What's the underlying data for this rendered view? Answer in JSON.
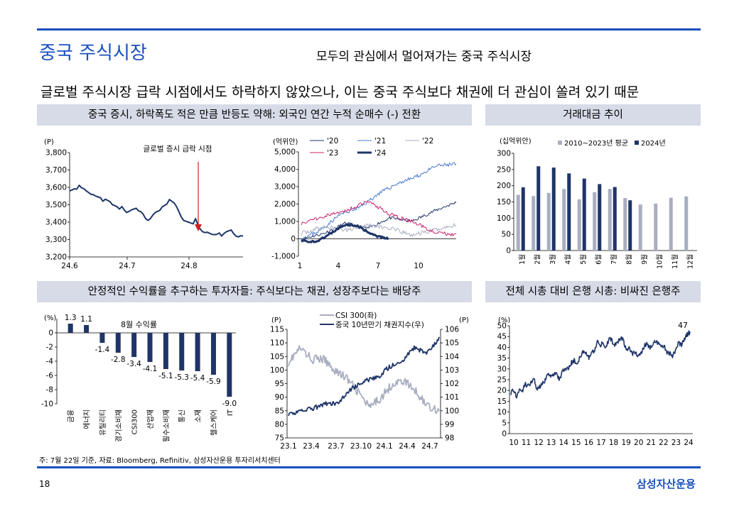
{
  "header": {
    "title": "중국 주식시장",
    "subtitle": "모두의 관심에서 멀어져가는 중국 주식시장",
    "headline": "글로벌 주식시장 급락 시점에서도 하락하지 않았으나, 이는 중국 주식보다 채권에 더 관심이 쏠려 있기 때문"
  },
  "bands": {
    "b1": "중국 증시, 하락폭도 적은 만큼 반등도 약해: 외국인 연간 누적 순매수 (-) 전환",
    "b2": "거래대금 추이",
    "b3": "안정적인 수익률을 추구하는 투자자들: 주식보다는 채권, 성장주보다는 배당주",
    "b4": "전체 시총 대비 은행 시총: 비싸진 은행주"
  },
  "footer": {
    "note": "주: 7월 22일 기준, 자료: Bloomberg, Refinitiv, 삼성자산운용 투자리서치센터",
    "page": "18",
    "brand": "삼성자산운용"
  },
  "colors": {
    "accent": "#1a4fbf",
    "navy": "#1f3569",
    "band": "#d6dbe7",
    "gray": "#a9aec0",
    "red": "#d42020"
  },
  "chart_data": [
    {
      "type": "line",
      "unit": "(P)",
      "annotation": "글로벌 증시 급락 시점",
      "x_ticks": [
        "24.6",
        "24.7",
        "24.8"
      ],
      "ylim": [
        3200,
        3800
      ],
      "y_ticks": [
        "3,200",
        "3,300",
        "3,400",
        "3,500",
        "3,600",
        "3,700",
        "3,800"
      ],
      "series": [
        {
          "values": [
            3580,
            3585,
            3592,
            3590,
            3612,
            3598,
            3592,
            3580,
            3570,
            3560,
            3558,
            3550,
            3545,
            3540,
            3520,
            3532,
            3525,
            3518,
            3500,
            3495,
            3488,
            3475,
            3490,
            3470,
            3455,
            3462,
            3470,
            3475,
            3480,
            3465,
            3460,
            3445,
            3420,
            3410,
            3420,
            3440,
            3455,
            3462,
            3468,
            3488,
            3496,
            3505,
            3530,
            3520,
            3510,
            3490,
            3460,
            3430,
            3410,
            3405,
            3400,
            3395,
            3390,
            3420,
            3385,
            3360,
            3345,
            3340,
            3342,
            3335,
            3330,
            3328,
            3330,
            3338,
            3320,
            3335,
            3345,
            3350,
            3355,
            3335,
            3320,
            3315,
            3322,
            3320
          ]
        }
      ]
    },
    {
      "type": "line",
      "unit": "(억위안)",
      "x_ticks": [
        "1",
        "4",
        "7",
        "10"
      ],
      "ylim": [
        -1000,
        5000
      ],
      "y_ticks": [
        "-1,000",
        "0",
        "1,000",
        "2,000",
        "3,000",
        "4,000",
        "5,000"
      ],
      "legend": [
        "'20",
        "'21",
        "'22",
        "'23",
        "'24"
      ]
    },
    {
      "type": "bar",
      "unit": "(십억위안)",
      "categories": [
        "1월",
        "2월",
        "3월",
        "4월",
        "5월",
        "6월",
        "7월",
        "8월",
        "9월",
        "10월",
        "11월",
        "12월"
      ],
      "ylim": [
        0,
        300
      ],
      "y_ticks": [
        "0",
        "50",
        "100",
        "150",
        "200",
        "250",
        "300"
      ],
      "series": [
        {
          "name": "2010~2023년 평균",
          "values": [
            172,
            168,
            178,
            190,
            158,
            180,
            190,
            162,
            142,
            145,
            163,
            167
          ]
        },
        {
          "name": "2024년",
          "values": [
            195,
            260,
            256,
            238,
            222,
            205,
            196,
            155,
            null,
            null,
            null,
            null
          ]
        }
      ]
    },
    {
      "type": "bar",
      "unit": "(%)",
      "annotation": "8월 수익률",
      "categories": [
        "금융",
        "에너지",
        "유틸리티",
        "경기소비재",
        "CSI300",
        "산업재",
        "필수소비재",
        "통신",
        "소재",
        "헬스케어",
        "IT"
      ],
      "values": [
        1.3,
        1.1,
        -1.4,
        -2.8,
        -3.4,
        -4.1,
        -5.1,
        -5.3,
        -5.4,
        -5.9,
        -9.0
      ],
      "value_labels": [
        "1.3",
        "1.1",
        "-1.4",
        "-2.8",
        "-3.4",
        "-4.1",
        "-5.1",
        "-5.3",
        "-5.4",
        "-5.9",
        "-9.0"
      ],
      "ylim": [
        -10,
        2
      ],
      "y_ticks": [
        "-10",
        "-8",
        "-6",
        "-4",
        "-2",
        "0"
      ]
    },
    {
      "type": "line",
      "unit_left": "(P)",
      "unit_right": "(P)",
      "x_ticks": [
        "23.1",
        "23.4",
        "23.7",
        "23.10",
        "24.1",
        "24.4",
        "24.7"
      ],
      "ylim_left": [
        75,
        115
      ],
      "ylim_right": [
        98,
        106
      ],
      "y_ticks_left": [
        "75",
        "80",
        "85",
        "90",
        "95",
        "100",
        "105",
        "110",
        "115"
      ],
      "y_ticks_right": [
        "98",
        "99",
        "100",
        "101",
        "102",
        "103",
        "104",
        "105",
        "106"
      ],
      "legend": [
        "CSI 300(좌)",
        "중국 10년만기 채권지수(우)"
      ]
    },
    {
      "type": "line",
      "unit": "(%)",
      "annotation": "47",
      "x_ticks": [
        "10",
        "11",
        "12",
        "13",
        "14",
        "15",
        "16",
        "17",
        "18",
        "19",
        "20",
        "21",
        "22",
        "23",
        "24"
      ],
      "ylim": [
        0,
        50
      ],
      "y_ticks": [
        "0",
        "5",
        "10",
        "15",
        "20",
        "25",
        "30",
        "35",
        "40",
        "45",
        "50"
      ],
      "series": [
        {
          "values": [
            19,
            20,
            17,
            21,
            20,
            23,
            22,
            24,
            25,
            21,
            22,
            23,
            25,
            28,
            26,
            28,
            27,
            25,
            30,
            29,
            31,
            33,
            34,
            32,
            36,
            38,
            37,
            35,
            37,
            39,
            43,
            41,
            42,
            40,
            44,
            43,
            41,
            42,
            45,
            43,
            38,
            40,
            37,
            38,
            36,
            37,
            40,
            42,
            40,
            41,
            43,
            42,
            40,
            41,
            38,
            37,
            36,
            38,
            42,
            41,
            44,
            46,
            47
          ]
        }
      ]
    }
  ]
}
